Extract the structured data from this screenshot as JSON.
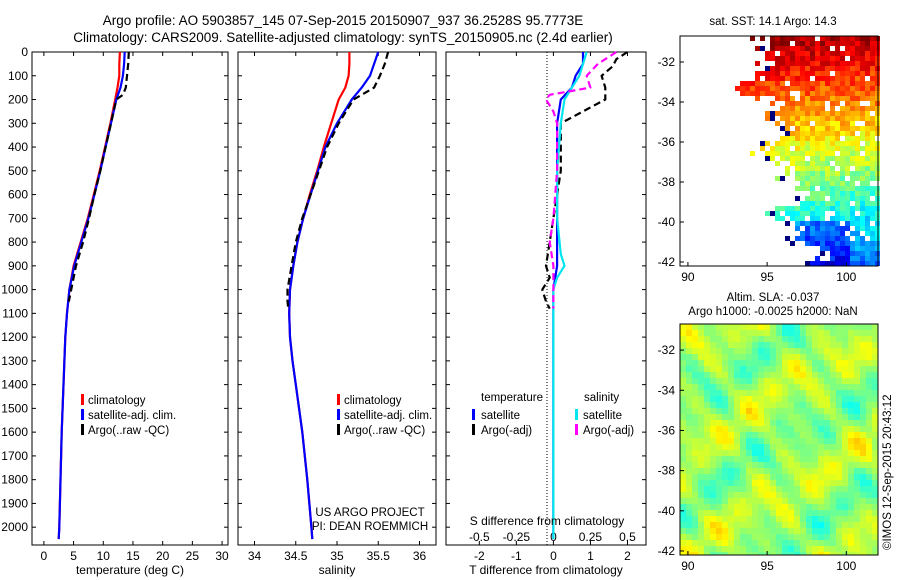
{
  "header": {
    "title_line1": "Argo profile: AO 5903857_145 07-Sep-2015 20150907_937 36.2528S 95.7773E",
    "title_line2": "Climatology: CARS2009. Satellite-adjusted climatology: synTS_20150905.nc (2.4d earlier)"
  },
  "colors": {
    "climatology": "#ff0000",
    "satellite": "#0000ff",
    "argo": "#000000",
    "sal_satellite": "#00e5ee",
    "sal_argo": "#ff00ff",
    "land": "#ffffff"
  },
  "chart_data": [
    {
      "id": "temperature",
      "type": "line",
      "xlabel": "temperature (deg C)",
      "xlim": [
        -2,
        31
      ],
      "ylim": [
        2075,
        0
      ],
      "xticks": [
        "0",
        "5",
        "10",
        "15",
        "20",
        "25",
        "30"
      ],
      "xtick_values": [
        0,
        5,
        10,
        15,
        20,
        25,
        30
      ],
      "yticks": [
        "0",
        "100",
        "200",
        "300",
        "400",
        "500",
        "600",
        "700",
        "800",
        "900",
        "1000",
        "1100",
        "1200",
        "1300",
        "1400",
        "1500",
        "1600",
        "1700",
        "1800",
        "1900",
        "2000"
      ],
      "ytick_values": [
        0,
        100,
        200,
        300,
        400,
        500,
        600,
        700,
        800,
        900,
        1000,
        1100,
        1200,
        1300,
        1400,
        1500,
        1600,
        1700,
        1800,
        1900,
        2000
      ],
      "legend": [
        "climatology",
        "satellite-adj. clim.",
        "Argo(..raw -QC)"
      ],
      "series": [
        {
          "name": "climatology",
          "color": "#ff0000",
          "dash": false,
          "depth": [
            0,
            50,
            100,
            150,
            200,
            300,
            400,
            500,
            600,
            700,
            800,
            900,
            1000,
            1100,
            1200,
            1400,
            1600,
            1800,
            2000,
            2050
          ],
          "values": [
            12.8,
            12.7,
            12.7,
            12.4,
            12.0,
            11.2,
            10.3,
            9.4,
            8.4,
            7.4,
            6.2,
            5.0,
            4.3,
            3.9,
            3.6,
            3.3,
            3.0,
            2.8,
            2.6,
            2.5
          ]
        },
        {
          "name": "satellite-adj. clim.",
          "color": "#0000ff",
          "dash": false,
          "depth": [
            0,
            50,
            100,
            150,
            200,
            300,
            400,
            500,
            600,
            700,
            800,
            900,
            1000,
            1100,
            1200,
            1400,
            1600,
            1800,
            2000,
            2050
          ],
          "values": [
            13.6,
            13.5,
            13.3,
            12.9,
            12.2,
            11.3,
            10.4,
            9.5,
            8.5,
            7.5,
            6.3,
            5.1,
            4.3,
            3.9,
            3.6,
            3.3,
            3.0,
            2.8,
            2.6,
            2.5
          ]
        },
        {
          "name": "Argo(..raw -QC)",
          "color": "#000000",
          "dash": true,
          "depth": [
            0,
            50,
            100,
            150,
            180,
            200,
            300,
            400,
            500,
            600,
            700,
            800,
            850,
            900,
            950,
            1000,
            1050
          ],
          "values": [
            14.3,
            14.2,
            14.0,
            13.8,
            13.3,
            12.2,
            11.3,
            10.4,
            9.5,
            8.5,
            7.6,
            6.6,
            6.0,
            5.4,
            5.0,
            4.6,
            4.2
          ]
        }
      ]
    },
    {
      "id": "salinity",
      "type": "line",
      "xlabel": "salinity",
      "xlim": [
        33.8,
        36.2
      ],
      "ylim": [
        2075,
        0
      ],
      "xticks": [
        "34",
        "34.5",
        "35",
        "35.5",
        "36"
      ],
      "xtick_values": [
        34,
        34.5,
        35,
        35.5,
        36
      ],
      "legend": [
        "climatology",
        "satellite-adj. clim.",
        "Argo(..raw -QC)"
      ],
      "annotations": [
        "US ARGO PROJECT",
        "PI: DEAN ROEMMICH"
      ],
      "series": [
        {
          "name": "climatology",
          "color": "#ff0000",
          "dash": false,
          "depth": [
            0,
            50,
            100,
            150,
            200,
            300,
            400,
            500,
            600,
            700,
            800,
            900,
            1000,
            1100,
            1200,
            1300,
            1400,
            1600,
            1800,
            2000,
            2050
          ],
          "values": [
            35.15,
            35.15,
            35.14,
            35.1,
            35.02,
            34.93,
            34.84,
            34.76,
            34.67,
            34.59,
            34.52,
            34.47,
            34.43,
            34.42,
            34.43,
            34.46,
            34.5,
            34.58,
            34.64,
            34.69,
            34.7
          ]
        },
        {
          "name": "satellite-adj. clim.",
          "color": "#0000ff",
          "dash": false,
          "depth": [
            0,
            50,
            100,
            150,
            200,
            300,
            400,
            500,
            600,
            700,
            800,
            900,
            1000,
            1100,
            1200,
            1300,
            1400,
            1600,
            1800,
            2000,
            2050
          ],
          "values": [
            35.5,
            35.45,
            35.4,
            35.3,
            35.18,
            35.0,
            34.86,
            34.77,
            34.68,
            34.59,
            34.52,
            34.47,
            34.43,
            34.42,
            34.43,
            34.46,
            34.5,
            34.58,
            34.64,
            34.69,
            34.7
          ]
        },
        {
          "name": "Argo(..raw -QC)",
          "color": "#000000",
          "dash": true,
          "depth": [
            0,
            50,
            100,
            150,
            200,
            300,
            400,
            500,
            600,
            700,
            800,
            900,
            1000,
            1050,
            1080
          ],
          "values": [
            35.62,
            35.58,
            35.52,
            35.45,
            35.2,
            35.02,
            34.88,
            34.78,
            34.68,
            34.58,
            34.5,
            34.45,
            34.4,
            34.4,
            34.41
          ]
        }
      ]
    },
    {
      "id": "difference",
      "type": "line",
      "xlabel": "T difference from climatology",
      "xlabel_top": "S difference from climatology",
      "xlim": [
        -2.9,
        2.5
      ],
      "ylim": [
        2075,
        0
      ],
      "xticks": [
        "-2",
        "-1",
        "0",
        "1",
        "2"
      ],
      "xtick_values": [
        -2,
        -1,
        0,
        1,
        2
      ],
      "xticks_top": [
        "-0.5",
        "-0.25",
        "0",
        "0.25",
        "0.5"
      ],
      "xtick_top_values": [
        -0.5,
        -0.25,
        0,
        0.25,
        0.5
      ],
      "legend_headers": [
        "temperature",
        "salinity"
      ],
      "legend_t": [
        "satellite",
        "Argo(-adj)"
      ],
      "legend_s": [
        "satellite",
        "Argo(-adj)"
      ],
      "series": [
        {
          "name": "T satellite",
          "color": "#0000ff",
          "dash": false,
          "depth": [
            0,
            50,
            100,
            150,
            200,
            300,
            500,
            700,
            850,
            900,
            1000,
            1200,
            1500,
            2000,
            2050
          ],
          "values": [
            0.8,
            0.8,
            0.6,
            0.5,
            0.2,
            0.1,
            0.1,
            0.1,
            0.1,
            0.1,
            0.0,
            0.0,
            0.0,
            0.0,
            0.0
          ]
        },
        {
          "name": "T Argo(-adj)",
          "color": "#000000",
          "dash": true,
          "depth": [
            0,
            30,
            60,
            100,
            150,
            200,
            300,
            500,
            700,
            800,
            900,
            950,
            1000,
            1050,
            1080
          ],
          "values": [
            2.0,
            1.7,
            1.6,
            1.3,
            1.4,
            1.4,
            0.2,
            0.2,
            0.0,
            -0.1,
            -0.2,
            -0.1,
            -0.3,
            -0.2,
            -0.1
          ]
        },
        {
          "name": "S satellite",
          "color": "#00e5ee",
          "dash": false,
          "depth": [
            0,
            50,
            100,
            150,
            200,
            300,
            500,
            700,
            850,
            900,
            950,
            1000,
            1200,
            1500,
            2000,
            2050
          ],
          "values": [
            0.9,
            0.8,
            0.7,
            0.5,
            0.3,
            0.2,
            0.1,
            0.1,
            0.2,
            0.3,
            0.1,
            0.0,
            0.0,
            0.0,
            0.0,
            0.0
          ]
        },
        {
          "name": "S Argo(-adj)",
          "color": "#ff00ff",
          "dash": true,
          "depth": [
            0,
            50,
            100,
            150,
            180,
            200,
            250,
            300,
            500,
            700,
            800,
            900,
            1000,
            1050,
            1080
          ],
          "values": [
            1.7,
            1.2,
            0.9,
            1.0,
            -0.1,
            -0.2,
            0.0,
            0.1,
            0.1,
            0.0,
            -0.1,
            0.0,
            0.0,
            0.0,
            0.0
          ]
        }
      ]
    },
    {
      "id": "sst_map",
      "type": "heatmap",
      "title": "sat. SST: 14.1  Argo: 14.3",
      "xticks": [
        "90",
        "95",
        "100"
      ],
      "xtick_values": [
        90,
        95,
        100
      ],
      "yticks": [
        "-32",
        "-34",
        "-36",
        "-38",
        "-40",
        "-42"
      ],
      "ytick_values": [
        -32,
        -34,
        -36,
        -38,
        -40,
        -42
      ],
      "xlim": [
        89.5,
        102
      ],
      "ylim": [
        -42.2,
        -30.7
      ]
    },
    {
      "id": "sla_map",
      "type": "heatmap",
      "title_line1": "Altim. SLA: -0.037",
      "title_line2": "Argo h1000: -0.0025 h2000: NaN",
      "xticks": [
        "90",
        "95",
        "100"
      ],
      "xtick_values": [
        90,
        95,
        100
      ],
      "yticks": [
        "-32",
        "-34",
        "-36",
        "-38",
        "-40",
        "-42"
      ],
      "ytick_values": [
        -32,
        -34,
        -36,
        -38,
        -40,
        -42
      ],
      "xlim": [
        89.5,
        102
      ],
      "ylim": [
        -42.2,
        -30.7
      ],
      "side_label": "©IMOS 12-Sep-2015 20:43:12"
    }
  ]
}
